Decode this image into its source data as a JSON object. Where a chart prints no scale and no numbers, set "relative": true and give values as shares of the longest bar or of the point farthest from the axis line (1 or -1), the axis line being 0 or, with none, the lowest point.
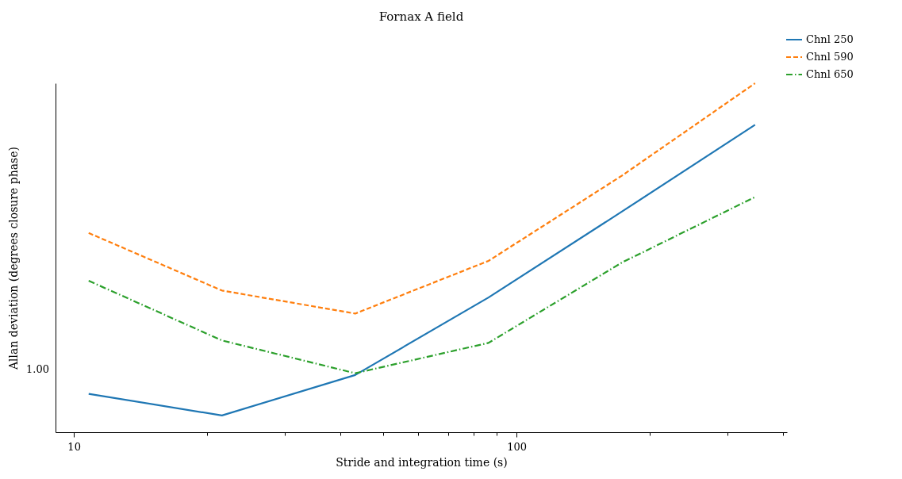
{
  "chart_data": {
    "type": "line",
    "title": "Fornax A field",
    "xlabel": "Stride and integration time (s)",
    "ylabel": "Allan deviation (degrees closure phase)",
    "x": [
      10.8,
      21.6,
      43.2,
      86.4,
      172.8,
      345.6
    ],
    "relative": true,
    "series": [
      {
        "name": "Chnl 250",
        "color": "#1f77b4",
        "line_style": "solid",
        "values": [
          0.11,
          0.048,
          0.164,
          0.386,
          0.632,
          0.881
        ]
      },
      {
        "name": "Chnl 590",
        "color": "#ff7f0e",
        "line_style": "dashed",
        "values": [
          0.571,
          0.406,
          0.34,
          0.491,
          0.735,
          1
        ]
      },
      {
        "name": "Chnl 650",
        "color": "#2ca02c",
        "line_style": "dashdot",
        "values": [
          0.434,
          0.263,
          0.169,
          0.256,
          0.486,
          0.674
        ]
      }
    ],
    "annotations": [
      "1.00"
    ],
    "log": "x",
    "grid": false,
    "legend": "top right",
    "xlim": [
      9.09,
      408
    ],
    "xticks": [
      10,
      {
        "value": 20,
        "label": null
      },
      {
        "value": 30,
        "label": null
      },
      {
        "value": 40,
        "label": null
      },
      {
        "value": 50,
        "label": null
      },
      {
        "value": 60,
        "label": null
      },
      {
        "value": 70,
        "label": null
      },
      {
        "value": 80,
        "label": null
      },
      {
        "value": 90,
        "label": null
      },
      100,
      {
        "value": 200,
        "label": null
      },
      {
        "value": 300,
        "label": null
      },
      {
        "value": 400,
        "label": null
      }
    ]
  }
}
